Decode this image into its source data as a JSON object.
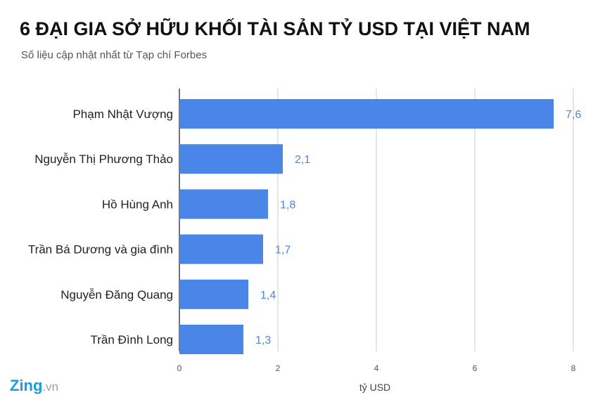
{
  "title": "6 ĐẠI GIA SỞ HỮU KHỐI TÀI SẢN TỶ USD TẠI VIỆT NAM",
  "subtitle": "Số liệu cập nhật nhất từ Tạp chí Forbes",
  "logo": {
    "main": "Zing",
    "suffix": ".vn"
  },
  "colors": {
    "bar": "#4a86e8",
    "value_label": "#4a86e8",
    "grid": "#cccccc",
    "axis": "#444444"
  },
  "chart_data": {
    "type": "bar",
    "orientation": "horizontal",
    "categories": [
      "Phạm Nhật Vượng",
      "Nguyễn Thị Phương Thảo",
      "Hồ Hùng Anh",
      "Trần Bá Dương và gia đình",
      "Nguyễn Đăng Quang",
      "Trần Đình Long"
    ],
    "values": [
      7.6,
      2.1,
      1.8,
      1.7,
      1.4,
      1.3
    ],
    "value_labels": [
      "7,6",
      "2,1",
      "1,8",
      "1,7",
      "1,4",
      "1,3"
    ],
    "xlabel": "tỷ USD",
    "xlim": [
      0,
      8
    ],
    "xticks": [
      "0",
      "2",
      "4",
      "6",
      "8"
    ],
    "grid": true
  }
}
